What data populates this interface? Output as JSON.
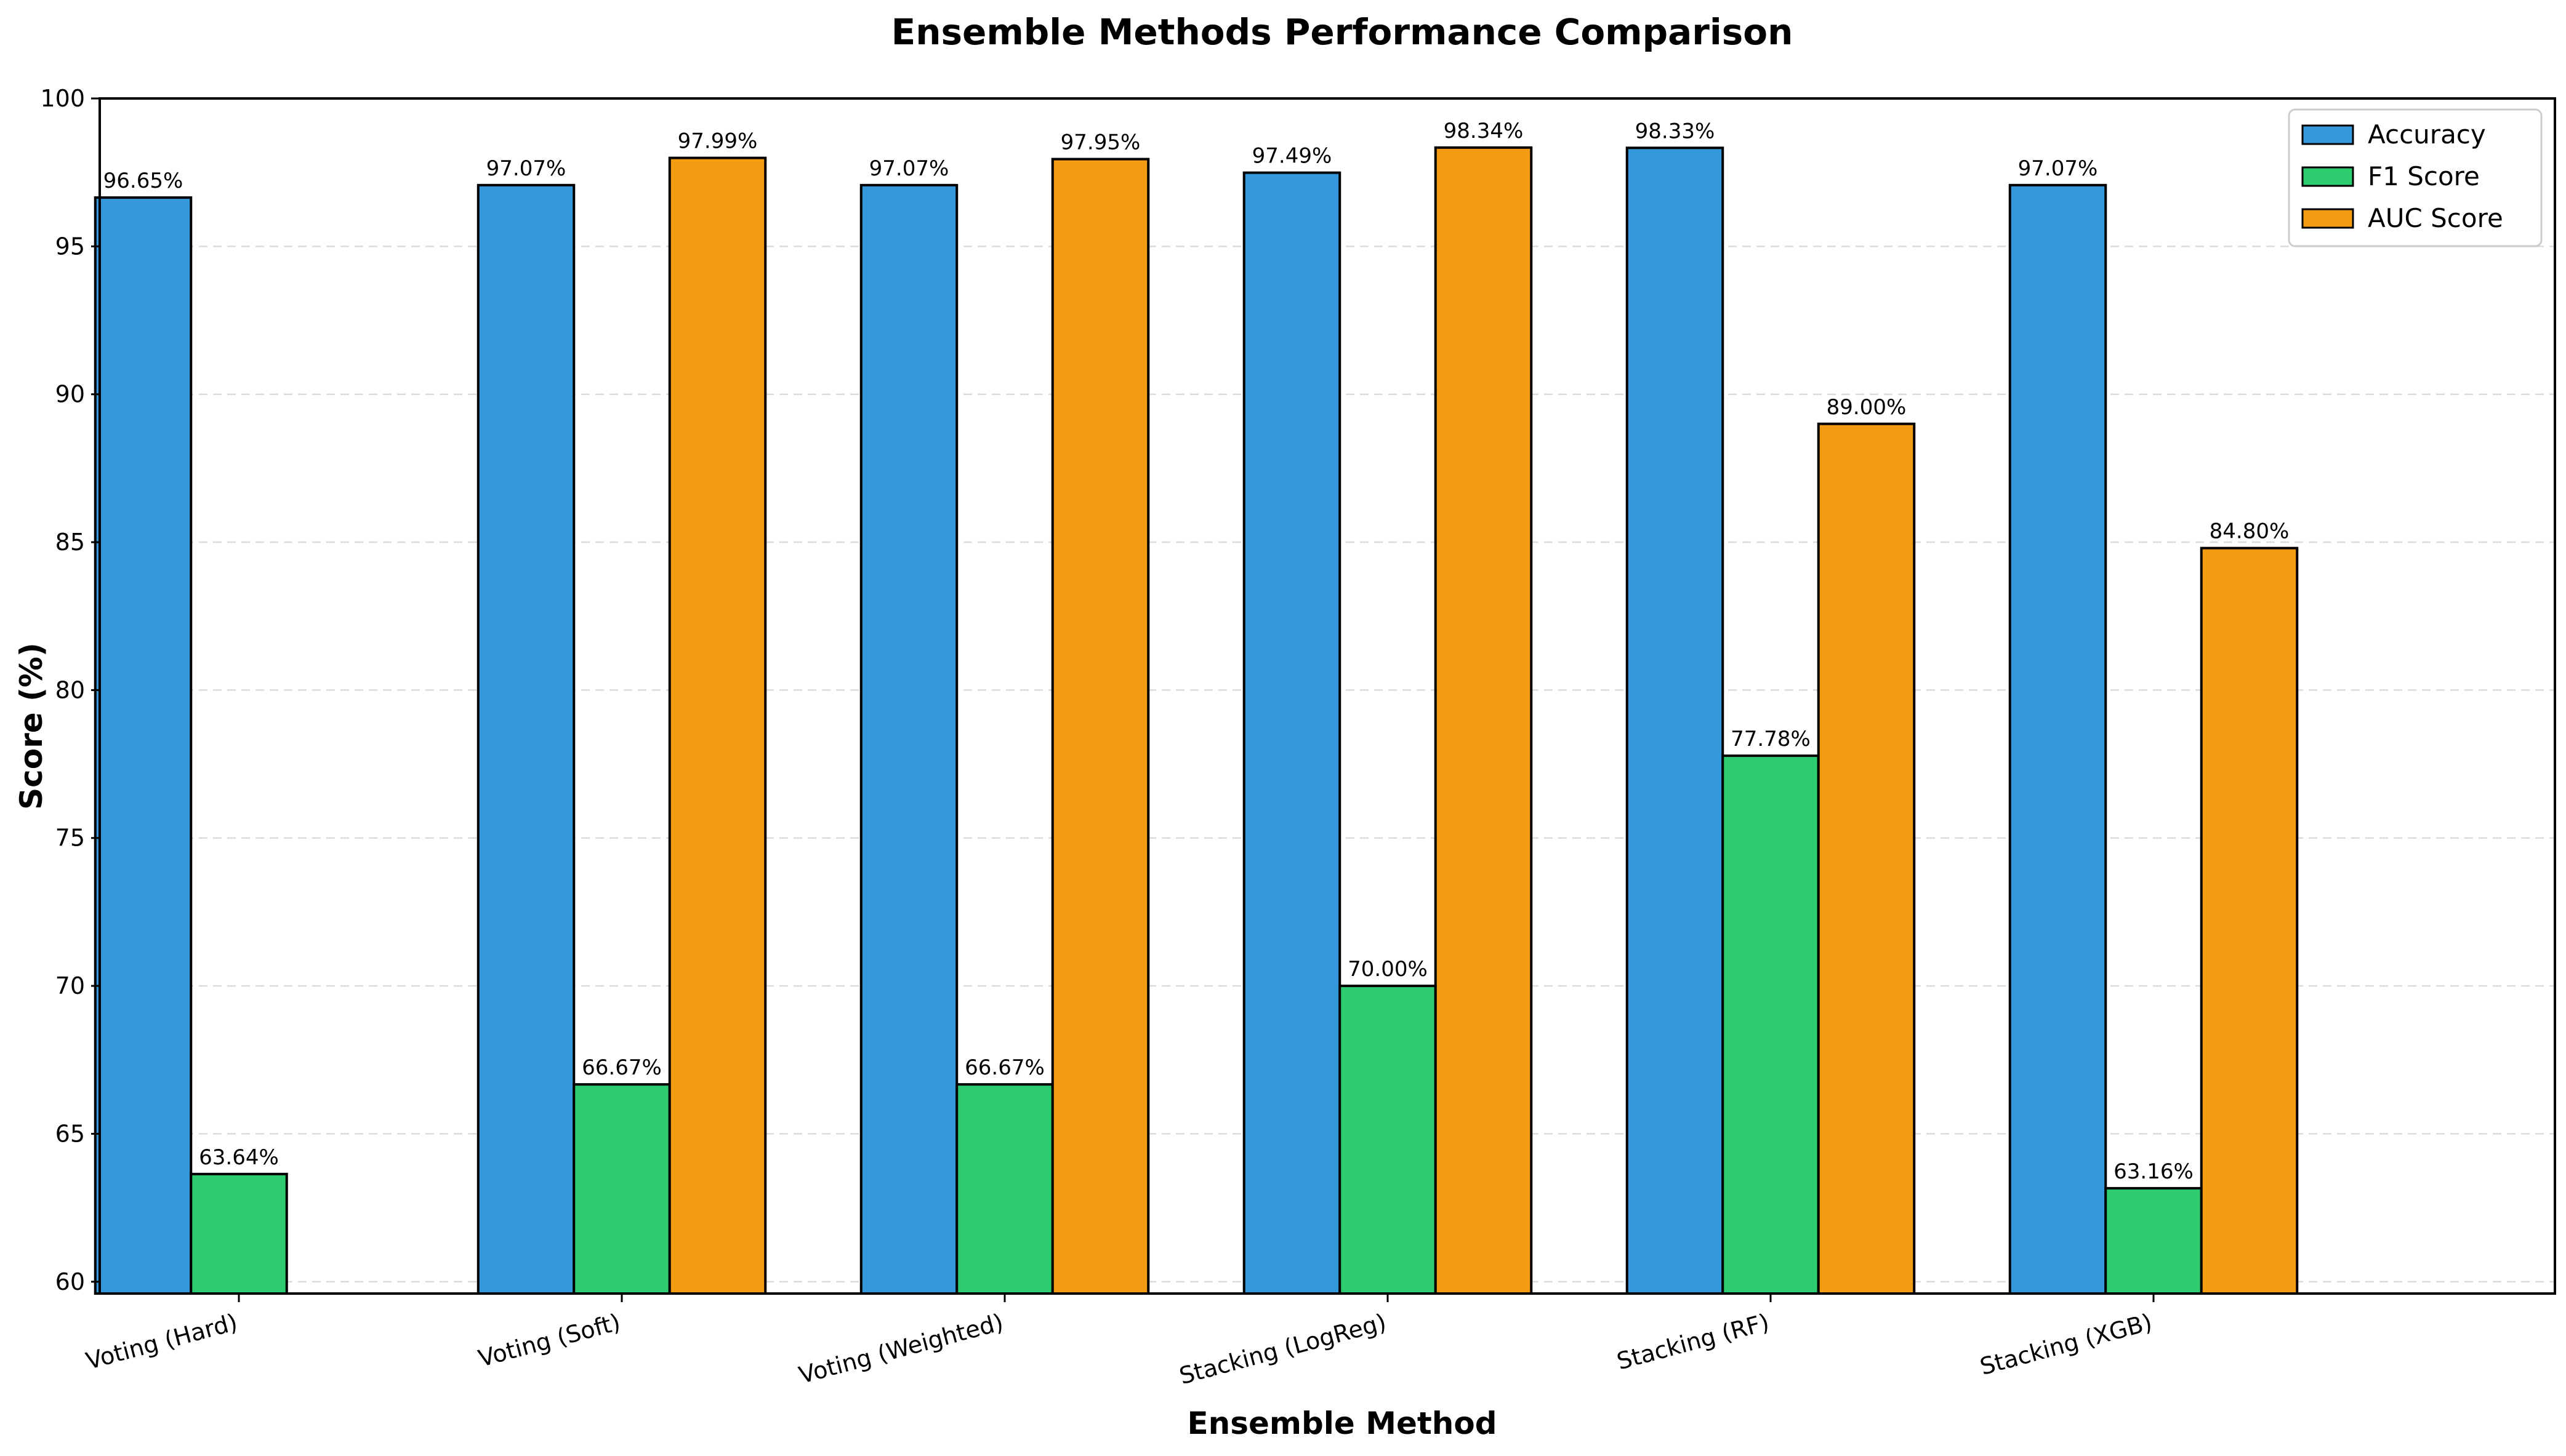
{
  "chart_data": {
    "type": "bar",
    "title": "Ensemble Methods Performance Comparison",
    "xlabel": "Ensemble Method",
    "ylabel": "Score (%)",
    "ylim": [
      59.6,
      100
    ],
    "yticks": [
      60,
      65,
      70,
      75,
      80,
      85,
      90,
      95,
      100
    ],
    "grid": "y-dashed",
    "legend_position": "top-right",
    "categories": [
      "Voting (Hard)",
      "Voting (Soft)",
      "Voting (Weighted)",
      "Stacking (LogReg)",
      "Stacking (RF)",
      "Stacking (XGB)"
    ],
    "series": [
      {
        "name": "Accuracy",
        "color": "#3498db",
        "values": [
          96.65,
          97.07,
          97.07,
          97.49,
          98.33,
          97.07
        ],
        "labels": [
          "96.65%",
          "97.07%",
          "97.07%",
          "97.49%",
          "98.33%",
          "97.07%"
        ]
      },
      {
        "name": "F1 Score",
        "color": "#2ecc71",
        "values": [
          63.64,
          66.67,
          66.67,
          70.0,
          77.78,
          63.16
        ],
        "labels": [
          "63.64%",
          "66.67%",
          "66.67%",
          "70.00%",
          "77.78%",
          "63.16%"
        ]
      },
      {
        "name": "AUC Score",
        "color": "#f39c12",
        "values": [
          null,
          97.99,
          97.95,
          98.34,
          89.0,
          84.8
        ],
        "labels": [
          null,
          "97.99%",
          "97.95%",
          "98.34%",
          "89.00%",
          "84.80%"
        ]
      }
    ]
  }
}
